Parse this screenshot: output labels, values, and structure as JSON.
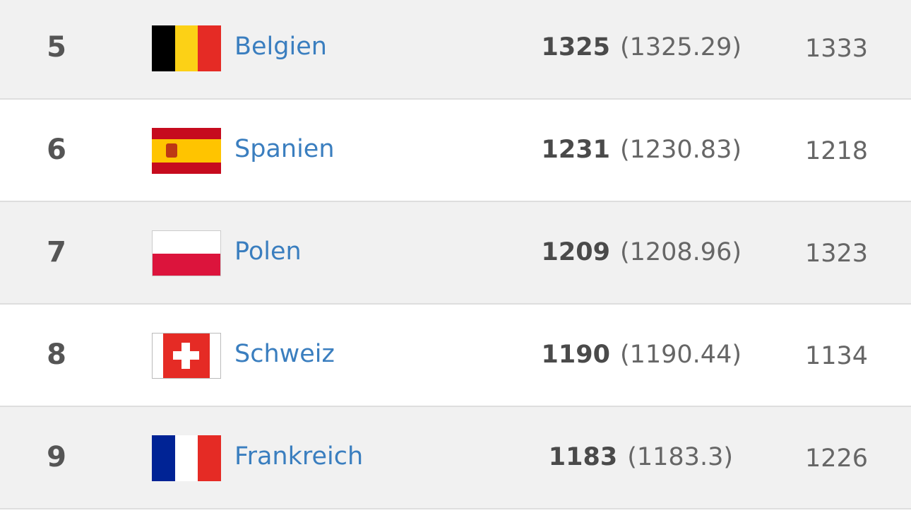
{
  "rows": [
    {
      "rank": "5",
      "country": "Belgien",
      "points": "1325",
      "points_exact": "(1325.29)",
      "previous": "1333",
      "flag": "belgium",
      "flag_colors": [
        "#000000",
        "#fcd116",
        "#e52b25"
      ]
    },
    {
      "rank": "6",
      "country": "Spanien",
      "points": "1231",
      "points_exact": "(1230.83)",
      "previous": "1218",
      "flag": "spain",
      "flag_colors": [
        "#c60b1e",
        "#ffc400",
        "#c60b1e"
      ]
    },
    {
      "rank": "7",
      "country": "Polen",
      "points": "1209",
      "points_exact": "(1208.96)",
      "previous": "1323",
      "flag": "poland",
      "flag_colors": [
        "#ffffff",
        "#dc143c"
      ]
    },
    {
      "rank": "8",
      "country": "Schweiz",
      "points": "1190",
      "points_exact": "(1190.44)",
      "previous": "1134",
      "flag": "switzerland",
      "flag_colors": [
        "#e52b25",
        "#ffffff"
      ]
    },
    {
      "rank": "9",
      "country": "Frankreich",
      "points": "1183",
      "points_exact": "(1183.3)",
      "previous": "1226",
      "flag": "france",
      "flag_colors": [
        "#002395",
        "#ffffff",
        "#e52b25"
      ]
    }
  ]
}
